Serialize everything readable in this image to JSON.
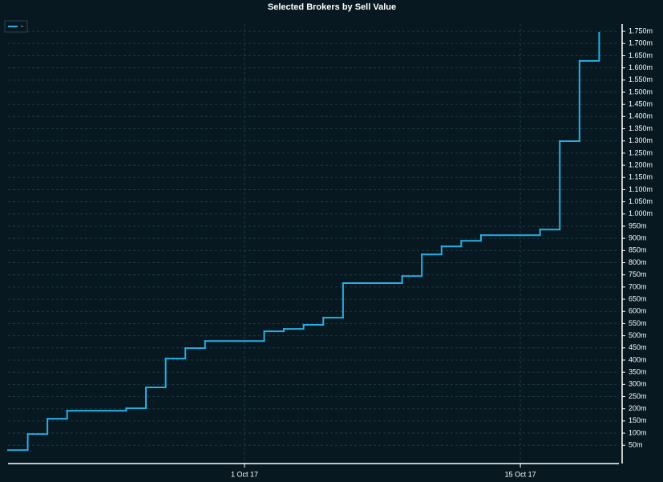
{
  "chart_data": {
    "type": "step",
    "title": "Selected Brokers by Sell Value",
    "x": [
      "2017-09-19",
      "2017-09-20",
      "2017-09-21",
      "2017-09-22",
      "2017-09-25",
      "2017-09-26",
      "2017-09-27",
      "2017-09-28",
      "2017-09-29",
      "2017-10-02",
      "2017-10-03",
      "2017-10-04",
      "2017-10-05",
      "2017-10-06",
      "2017-10-09",
      "2017-10-10",
      "2017-10-11",
      "2017-10-12",
      "2017-10-13",
      "2017-10-16",
      "2017-10-17",
      "2017-10-18",
      "2017-10-19"
    ],
    "series": [
      {
        "name": "-",
        "color": "#29aee3",
        "values": [
          30,
          96,
          159,
          192,
          202,
          288,
          406,
          449,
          478,
          518,
          528,
          545,
          574,
          716,
          745,
          834,
          867,
          890,
          913,
          936,
          1299,
          1629,
          1744
        ]
      }
    ],
    "xlim": [
      "2017-09-19",
      "2017-10-20"
    ],
    "xticks": [
      {
        "value": "2017-10-01",
        "label": "1 Oct 17"
      },
      {
        "value": "2017-10-15",
        "label": "15 Oct 17"
      }
    ],
    "ylim": [
      -25,
      1780
    ],
    "yticks": [
      {
        "value": 50,
        "label": "50m"
      },
      {
        "value": 100,
        "label": "100m"
      },
      {
        "value": 150,
        "label": "150m"
      },
      {
        "value": 200,
        "label": "200m"
      },
      {
        "value": 250,
        "label": "250m"
      },
      {
        "value": 300,
        "label": "300m"
      },
      {
        "value": 350,
        "label": "350m"
      },
      {
        "value": 400,
        "label": "400m"
      },
      {
        "value": 450,
        "label": "450m"
      },
      {
        "value": 500,
        "label": "500m"
      },
      {
        "value": 550,
        "label": "550m"
      },
      {
        "value": 600,
        "label": "600m"
      },
      {
        "value": 650,
        "label": "650m"
      },
      {
        "value": 700,
        "label": "700m"
      },
      {
        "value": 750,
        "label": "750m"
      },
      {
        "value": 800,
        "label": "800m"
      },
      {
        "value": 850,
        "label": "850m"
      },
      {
        "value": 900,
        "label": "900m"
      },
      {
        "value": 950,
        "label": "950m"
      },
      {
        "value": 1000,
        "label": "1.000m"
      },
      {
        "value": 1050,
        "label": "1.050m"
      },
      {
        "value": 1100,
        "label": "1.100m"
      },
      {
        "value": 1150,
        "label": "1.150m"
      },
      {
        "value": 1200,
        "label": "1.200m"
      },
      {
        "value": 1250,
        "label": "1.250m"
      },
      {
        "value": 1300,
        "label": "1.300m"
      },
      {
        "value": 1350,
        "label": "1.350m"
      },
      {
        "value": 1400,
        "label": "1.400m"
      },
      {
        "value": 1450,
        "label": "1.450m"
      },
      {
        "value": 1500,
        "label": "1.500m"
      },
      {
        "value": 1550,
        "label": "1.550m"
      },
      {
        "value": 1600,
        "label": "1.600m"
      },
      {
        "value": 1650,
        "label": "1.650m"
      },
      {
        "value": 1700,
        "label": "1.700m"
      },
      {
        "value": 1750,
        "label": "1.750m"
      }
    ],
    "grid": true,
    "legend": "top-left"
  }
}
